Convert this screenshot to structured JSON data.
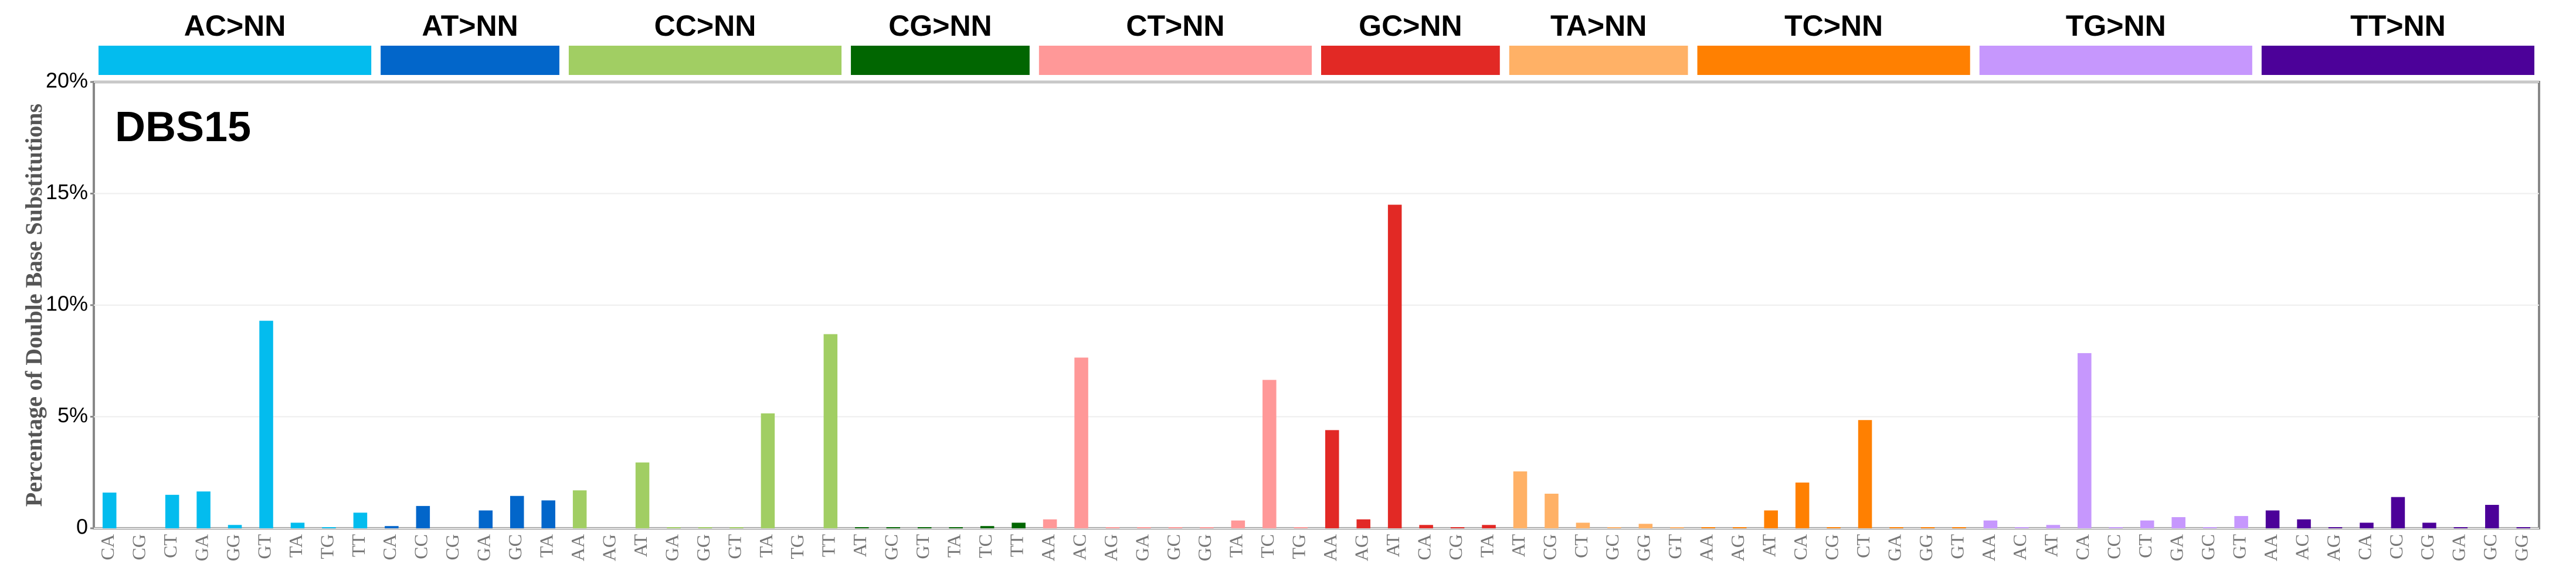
{
  "chart_data": {
    "type": "bar",
    "title": "DBS15",
    "y_label": "Percentage of Double Base Substitutions",
    "ylim": [
      0,
      20
    ],
    "yticks": [
      0,
      {
        "value": 5,
        "label": "5%"
      },
      {
        "value": 10,
        "label": "10%"
      },
      {
        "value": 15,
        "label": "15%"
      },
      {
        "value": 20,
        "label": "20%"
      }
    ],
    "grid": true,
    "series": [
      {
        "name": "AC>NN",
        "color": "#03bcee",
        "categories": [
          "CA",
          "CG",
          "CT",
          "GA",
          "GG",
          "GT",
          "TA",
          "TG",
          "TT"
        ],
        "values": [
          1.6,
          0,
          1.5,
          1.65,
          0.15,
          9.3,
          0.25,
          0.05,
          0.7
        ]
      },
      {
        "name": "AT>NN",
        "color": "#0266ca",
        "categories": [
          "CA",
          "CC",
          "CG",
          "GA",
          "GC",
          "TA"
        ],
        "values": [
          0.1,
          1.0,
          0,
          0.8,
          1.45,
          1.25
        ]
      },
      {
        "name": "CC>NN",
        "color": "#a1ce63",
        "categories": [
          "AA",
          "AG",
          "AT",
          "GA",
          "GG",
          "GT",
          "TA",
          "TG",
          "TT"
        ],
        "values": [
          1.7,
          0,
          2.95,
          0.05,
          0.05,
          0.05,
          5.15,
          0,
          8.7
        ]
      },
      {
        "name": "CG>NN",
        "color": "#016601",
        "categories": [
          "AT",
          "GC",
          "GT",
          "TA",
          "TC",
          "TT"
        ],
        "values": [
          0.05,
          0.05,
          0.05,
          0.05,
          0.1,
          0.25
        ]
      },
      {
        "name": "CT>NN",
        "color": "#ff9898",
        "categories": [
          "AA",
          "AC",
          "AG",
          "GA",
          "GC",
          "GG",
          "TA",
          "TC",
          "TG"
        ],
        "values": [
          0.4,
          7.65,
          0.05,
          0.05,
          0.05,
          0.05,
          0.35,
          6.65,
          0.05
        ]
      },
      {
        "name": "GC>NN",
        "color": "#e22925",
        "categories": [
          "AA",
          "AG",
          "AT",
          "CA",
          "CG",
          "TA"
        ],
        "values": [
          4.4,
          0.4,
          14.5,
          0.15,
          0.05,
          0.15
        ]
      },
      {
        "name": "TA>NN",
        "color": "#ffb166",
        "categories": [
          "AT",
          "CG",
          "CT",
          "GC",
          "GG",
          "GT"
        ],
        "values": [
          2.55,
          1.55,
          0.25,
          0.05,
          0.2,
          0.05
        ]
      },
      {
        "name": "TC>NN",
        "color": "#ff8001",
        "categories": [
          "AA",
          "AG",
          "AT",
          "CA",
          "CG",
          "CT",
          "GA",
          "GG",
          "GT"
        ],
        "values": [
          0.05,
          0.05,
          0.8,
          2.05,
          0.05,
          4.85,
          0.05,
          0.05,
          0.05
        ]
      },
      {
        "name": "TG>NN",
        "color": "#c697fd",
        "categories": [
          "AA",
          "AC",
          "AT",
          "CA",
          "CC",
          "CT",
          "GA",
          "GC",
          "GT"
        ],
        "values": [
          0.35,
          0.05,
          0.15,
          7.85,
          0.05,
          0.35,
          0.5,
          0.05,
          0.55
        ]
      },
      {
        "name": "TT>NN",
        "color": "#4c0199",
        "categories": [
          "AA",
          "AC",
          "AG",
          "CA",
          "CC",
          "CG",
          "GA",
          "GC",
          "GG"
        ],
        "values": [
          0.8,
          0.4,
          0.05,
          0.25,
          1.4,
          0.25,
          0.05,
          1.05,
          0.05
        ]
      }
    ]
  }
}
